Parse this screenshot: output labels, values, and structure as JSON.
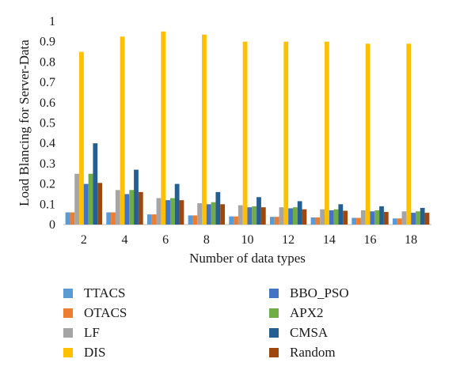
{
  "chart_data": {
    "type": "bar",
    "title": "",
    "xlabel": "Number of data types",
    "ylabel": "Load Blancing for Server-Data",
    "ylim": [
      0,
      1
    ],
    "yticks": [
      "0",
      "0.1",
      "0.2",
      "0.3",
      "0.4",
      "0.5",
      "0.6",
      "0.7",
      "0.8",
      "0.9",
      "1"
    ],
    "categories": [
      "2",
      "4",
      "6",
      "8",
      "10",
      "12",
      "14",
      "16",
      "18"
    ],
    "grid": false,
    "legend_position": "bottom",
    "series": [
      {
        "name": "TTACS",
        "color": "#5b9bd5",
        "values": [
          0.06,
          0.06,
          0.05,
          0.045,
          0.04,
          0.038,
          0.035,
          0.033,
          0.03
        ]
      },
      {
        "name": "OTACS",
        "color": "#ed7d31",
        "values": [
          0.06,
          0.06,
          0.05,
          0.045,
          0.04,
          0.038,
          0.035,
          0.033,
          0.03
        ]
      },
      {
        "name": "LF",
        "color": "#a5a5a5",
        "values": [
          0.25,
          0.17,
          0.13,
          0.105,
          0.095,
          0.085,
          0.075,
          0.07,
          0.065
        ]
      },
      {
        "name": "DIS",
        "color": "#ffc000",
        "values": [
          0.85,
          0.925,
          0.95,
          0.935,
          0.9,
          0.9,
          0.9,
          0.89,
          0.89
        ]
      },
      {
        "name": "BBO_PSO",
        "color": "#4472c4",
        "values": [
          0.2,
          0.15,
          0.12,
          0.1,
          0.085,
          0.08,
          0.07,
          0.065,
          0.058
        ]
      },
      {
        "name": "APX2",
        "color": "#70ad47",
        "values": [
          0.25,
          0.17,
          0.13,
          0.11,
          0.09,
          0.085,
          0.075,
          0.07,
          0.065
        ]
      },
      {
        "name": "CMSA",
        "color": "#255e91",
        "values": [
          0.4,
          0.27,
          0.2,
          0.16,
          0.135,
          0.115,
          0.1,
          0.09,
          0.082
        ]
      },
      {
        "name": "Random",
        "color": "#9e480e",
        "values": [
          0.205,
          0.16,
          0.12,
          0.1,
          0.085,
          0.075,
          0.068,
          0.062,
          0.058
        ]
      }
    ]
  }
}
